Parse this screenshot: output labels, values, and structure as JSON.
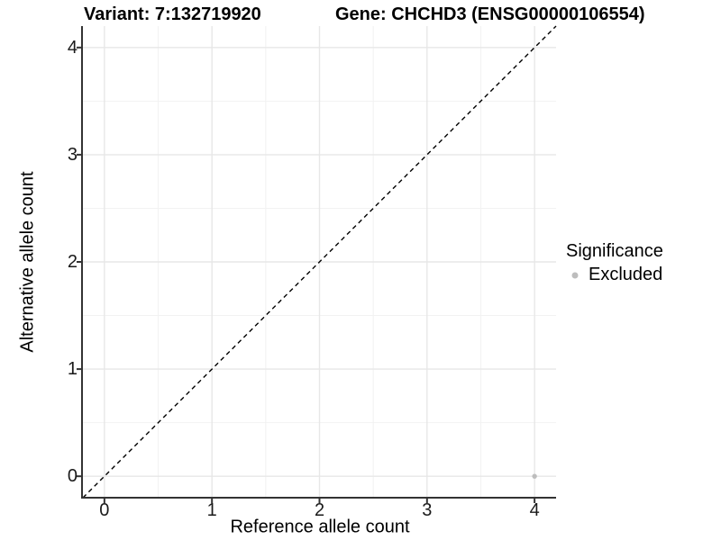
{
  "title": {
    "variant_label": "Variant: 7:132719920",
    "gene_label": "Gene: CHCHD3 (ENSG00000106554)"
  },
  "legend": {
    "title": "Significance",
    "items": [
      {
        "label": "Excluded",
        "color": "#bdbdbd"
      }
    ]
  },
  "colors": {
    "background": "#ffffff",
    "grid_major": "#e7e7e7",
    "grid_minor": "#f2f2f2",
    "axis_line": "#333333",
    "tick_mark": "#333333",
    "reference_line": "#000000",
    "point_excluded": "#bdbdbd",
    "text": "#000000"
  },
  "chart_data": {
    "type": "scatter",
    "title": "Variant: 7:132719920   Gene: CHCHD3 (ENSG00000106554)",
    "xlabel": "Reference allele count",
    "ylabel": "Alternative allele count",
    "xlim": [
      -0.2,
      4.2
    ],
    "ylim": [
      -0.2,
      4.2
    ],
    "x_ticks": [
      0,
      1,
      2,
      3,
      4
    ],
    "y_ticks": [
      0,
      1,
      2,
      3,
      4
    ],
    "grid": true,
    "legend_position": "right",
    "legend_title": "Significance",
    "series": [
      {
        "name": "Excluded",
        "color": "#bdbdbd",
        "points": [
          {
            "x": 4,
            "y": 0
          }
        ]
      }
    ],
    "reference_line": {
      "kind": "identity",
      "equation": "y = x",
      "style": "dashed",
      "color": "#000000"
    }
  }
}
